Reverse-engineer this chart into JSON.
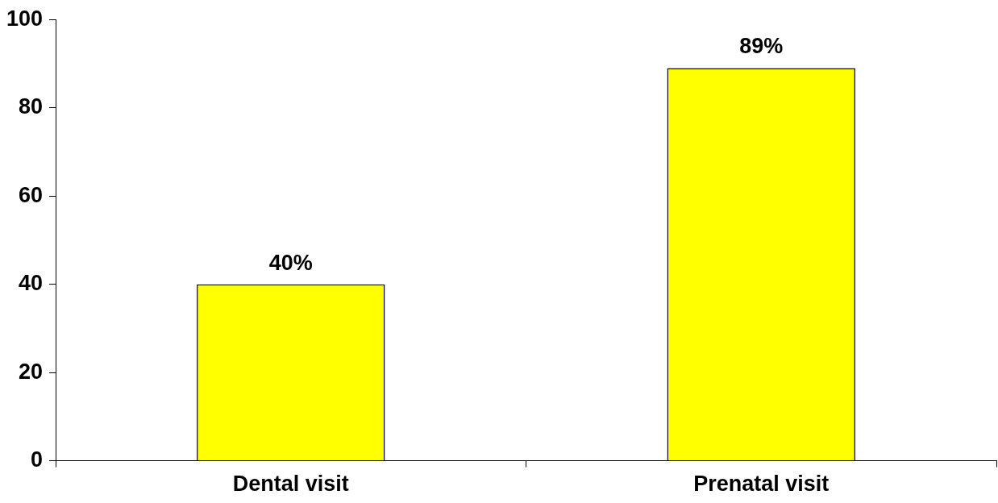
{
  "chart_data": {
    "type": "bar",
    "categories": [
      "Dental visit",
      "Prenatal visit"
    ],
    "values": [
      40,
      89
    ],
    "value_labels": [
      "40%",
      "89%"
    ],
    "color": "#ffff00",
    "ylim": [
      0,
      100
    ],
    "yticks": [
      0,
      20,
      40,
      60,
      80,
      100
    ],
    "grid": false,
    "legend": false
  }
}
